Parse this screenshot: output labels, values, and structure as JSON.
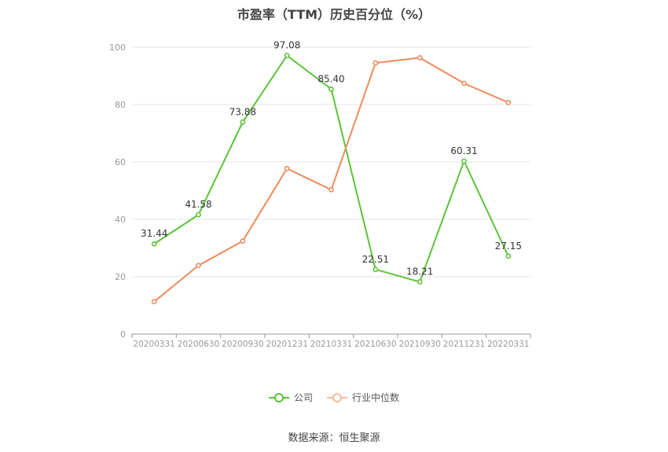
{
  "chart_data": {
    "type": "line",
    "title": "市盈率（TTM）历史百分位（%）",
    "categories": [
      "20200331",
      "20200630",
      "20200930",
      "20201231",
      "20210331",
      "20210630",
      "20210930",
      "20211231",
      "20220331"
    ],
    "ylim": [
      0,
      100
    ],
    "yticks": [
      0,
      20,
      40,
      60,
      80,
      100
    ],
    "grid": true,
    "legend_position": "bottom",
    "series": [
      {
        "name": "公司",
        "color": "#5cc33a",
        "values": [
          31.44,
          41.58,
          73.88,
          97.08,
          85.4,
          22.51,
          18.21,
          60.31,
          27.15
        ],
        "labels": [
          "31.44",
          "41.58",
          "73.88",
          "97.08",
          "85.40",
          "22.51",
          "18.21",
          "60.31",
          "27.15"
        ]
      },
      {
        "name": "行业中位数",
        "color": "#f08a5d",
        "values": [
          11.3,
          23.9,
          32.4,
          57.7,
          50.3,
          94.5,
          96.3,
          87.4,
          80.7
        ]
      }
    ]
  },
  "source": "数据来源：恒生聚源"
}
